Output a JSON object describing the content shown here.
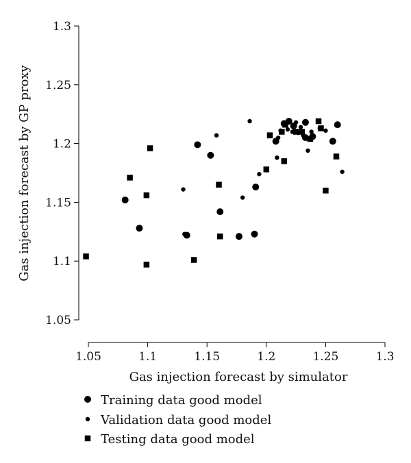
{
  "chart_data": {
    "type": "scatter",
    "xlabel": "Gas injection forecast by simulator",
    "ylabel": "Gas injection forecast by GP proxy",
    "xlim": [
      1.04,
      1.3
    ],
    "ylim": [
      1.04,
      1.3
    ],
    "x_ticks": [
      "1.05",
      "1.1",
      "1.15",
      "1.2",
      "1.25",
      "1.3"
    ],
    "y_ticks": [
      "1.05",
      "1.1",
      "1.15",
      "1.2",
      "1.25",
      "1.3"
    ],
    "x_tick_values": [
      1.05,
      1.1,
      1.15,
      1.2,
      1.25,
      1.3
    ],
    "y_tick_values": [
      1.05,
      1.1,
      1.15,
      1.2,
      1.25,
      1.3
    ],
    "grid": false,
    "legend_position": "bottom",
    "color": "#000000",
    "series": [
      {
        "name": "Training data good model",
        "marker": "circle-large",
        "points": [
          [
            1.081,
            1.152
          ],
          [
            1.093,
            1.128
          ],
          [
            1.133,
            1.122
          ],
          [
            1.142,
            1.199
          ],
          [
            1.153,
            1.19
          ],
          [
            1.161,
            1.142
          ],
          [
            1.177,
            1.121
          ],
          [
            1.19,
            1.123
          ],
          [
            1.191,
            1.163
          ],
          [
            1.208,
            1.202
          ],
          [
            1.215,
            1.217
          ],
          [
            1.219,
            1.219
          ],
          [
            1.223,
            1.215
          ],
          [
            1.233,
            1.218
          ],
          [
            1.233,
            1.205
          ],
          [
            1.239,
            1.206
          ],
          [
            1.256,
            1.202
          ],
          [
            1.26,
            1.216
          ]
        ]
      },
      {
        "name": "Validation data good model",
        "marker": "circle-small",
        "points": [
          [
            1.13,
            1.161
          ],
          [
            1.131,
            1.123
          ],
          [
            1.158,
            1.207
          ],
          [
            1.18,
            1.154
          ],
          [
            1.186,
            1.219
          ],
          [
            1.194,
            1.174
          ],
          [
            1.209,
            1.188
          ],
          [
            1.21,
            1.205
          ],
          [
            1.212,
            1.211
          ],
          [
            1.218,
            1.212
          ],
          [
            1.222,
            1.21
          ],
          [
            1.225,
            1.218
          ],
          [
            1.227,
            1.209
          ],
          [
            1.229,
            1.214
          ],
          [
            1.231,
            1.207
          ],
          [
            1.235,
            1.194
          ],
          [
            1.238,
            1.21
          ],
          [
            1.245,
            1.213
          ],
          [
            1.25,
            1.211
          ],
          [
            1.264,
            1.176
          ]
        ]
      },
      {
        "name": "Testing data good model",
        "marker": "square",
        "points": [
          [
            1.048,
            1.104
          ],
          [
            1.085,
            1.171
          ],
          [
            1.099,
            1.156
          ],
          [
            1.099,
            1.097
          ],
          [
            1.102,
            1.196
          ],
          [
            1.139,
            1.101
          ],
          [
            1.16,
            1.165
          ],
          [
            1.161,
            1.121
          ],
          [
            1.2,
            1.178
          ],
          [
            1.203,
            1.207
          ],
          [
            1.213,
            1.21
          ],
          [
            1.215,
            1.185
          ],
          [
            1.216,
            1.216
          ],
          [
            1.225,
            1.21
          ],
          [
            1.23,
            1.21
          ],
          [
            1.237,
            1.204
          ],
          [
            1.244,
            1.219
          ],
          [
            1.246,
            1.213
          ],
          [
            1.25,
            1.16
          ],
          [
            1.259,
            1.189
          ]
        ]
      }
    ]
  }
}
